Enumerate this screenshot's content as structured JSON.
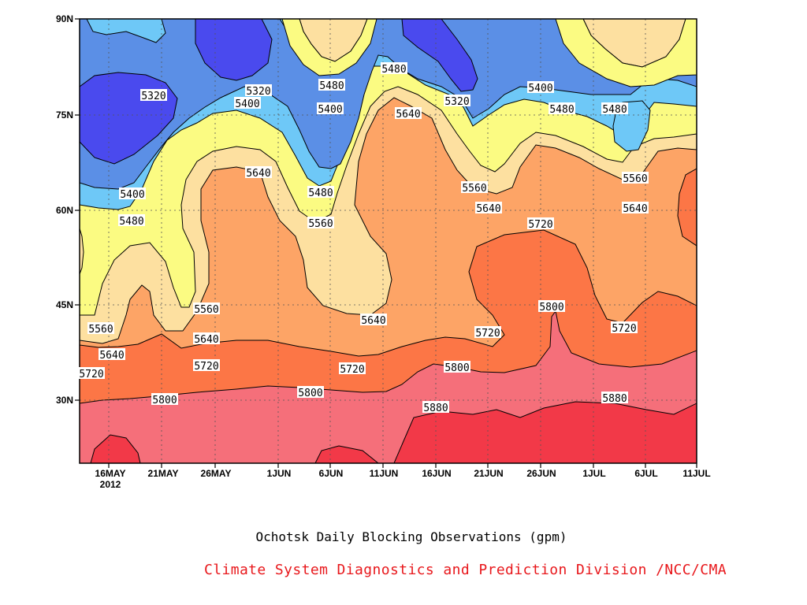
{
  "caption": "Ochotsk Daily Blocking Observations (gpm)",
  "credit": "Climate System Diagnostics and Prediction Division /NCC/CMA",
  "chart_data": {
    "type": "contour",
    "xaxis": {
      "ticks": [
        "16MAY",
        "21MAY",
        "26MAY",
        "1JUN",
        "6JUN",
        "11JUN",
        "16JUN",
        "21JUN",
        "26JUN",
        "1JUL",
        "6JUL",
        "11JUL"
      ],
      "year_label": "2012"
    },
    "yaxis": {
      "ticks": [
        "30N",
        "45N",
        "60N",
        "75N",
        "90N"
      ]
    },
    "levels": [
      5320,
      5400,
      5480,
      5560,
      5640,
      5720,
      5800,
      5880
    ],
    "fill_colors": {
      "lt5320": "#4a4aee",
      "5320": "#5b8fe6",
      "5400": "#6ec8f7",
      "5480": "#fbfb82",
      "5560": "#fde0a0",
      "5640": "#fda466",
      "5720": "#fc7646",
      "5800": "#f56f7a",
      "5880": "#f23948"
    },
    "contour_labels": [
      {
        "text": "5320"
      },
      {
        "text": "5320"
      },
      {
        "text": "5320"
      },
      {
        "text": "5400"
      },
      {
        "text": "5400"
      },
      {
        "text": "5400"
      },
      {
        "text": "5400"
      },
      {
        "text": "5480"
      },
      {
        "text": "5480"
      },
      {
        "text": "5480"
      },
      {
        "text": "5480"
      },
      {
        "text": "5480"
      },
      {
        "text": "5480"
      },
      {
        "text": "5560"
      },
      {
        "text": "5560"
      },
      {
        "text": "5560"
      },
      {
        "text": "5560"
      },
      {
        "text": "5560"
      },
      {
        "text": "5640"
      },
      {
        "text": "5640"
      },
      {
        "text": "5640"
      },
      {
        "text": "5640"
      },
      {
        "text": "5640"
      },
      {
        "text": "5640"
      },
      {
        "text": "5640"
      },
      {
        "text": "5720"
      },
      {
        "text": "5720"
      },
      {
        "text": "5720"
      },
      {
        "text": "5720"
      },
      {
        "text": "5720"
      },
      {
        "text": "5720"
      },
      {
        "text": "5800"
      },
      {
        "text": "5800"
      },
      {
        "text": "5800"
      },
      {
        "text": "5800"
      },
      {
        "text": "5880"
      },
      {
        "text": "5880"
      }
    ]
  }
}
